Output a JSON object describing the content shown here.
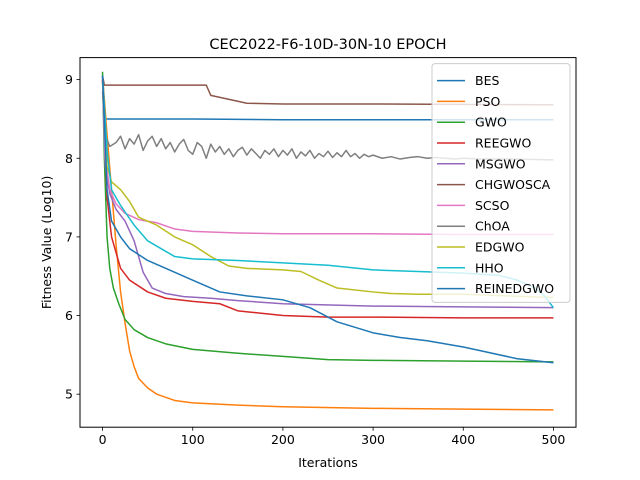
{
  "chart_data": {
    "type": "line",
    "title": "CEC2022-F6-10D-30N-10 EPOCH",
    "xlabel": "Iterations",
    "ylabel": "Fitness Value (Log10)",
    "xlim": [
      -25,
      525
    ],
    "ylim": [
      4.58,
      9.28
    ],
    "xticks": [
      0,
      100,
      200,
      300,
      400,
      500
    ],
    "yticks": [
      5,
      6,
      7,
      8,
      9
    ],
    "grid": false,
    "legend_position": "top-right",
    "series": [
      {
        "name": "BES",
        "color": "#1f77b4",
        "points": [
          [
            0,
            9.05
          ],
          [
            3,
            8.5
          ],
          [
            100,
            8.5
          ],
          [
            200,
            8.49
          ],
          [
            500,
            8.49
          ]
        ]
      },
      {
        "name": "PSO",
        "color": "#ff7f0e",
        "points": [
          [
            0,
            9.05
          ],
          [
            5,
            8.3
          ],
          [
            10,
            7.6
          ],
          [
            15,
            6.9
          ],
          [
            20,
            6.3
          ],
          [
            25,
            5.9
          ],
          [
            30,
            5.55
          ],
          [
            35,
            5.35
          ],
          [
            40,
            5.2
          ],
          [
            50,
            5.08
          ],
          [
            60,
            5.0
          ],
          [
            80,
            4.92
          ],
          [
            100,
            4.89
          ],
          [
            150,
            4.86
          ],
          [
            200,
            4.84
          ],
          [
            300,
            4.82
          ],
          [
            400,
            4.81
          ],
          [
            500,
            4.8
          ]
        ]
      },
      {
        "name": "GWO",
        "color": "#2ca02c",
        "points": [
          [
            0,
            9.1
          ],
          [
            2,
            8.0
          ],
          [
            5,
            7.0
          ],
          [
            8,
            6.6
          ],
          [
            12,
            6.35
          ],
          [
            18,
            6.15
          ],
          [
            25,
            5.95
          ],
          [
            35,
            5.82
          ],
          [
            50,
            5.72
          ],
          [
            70,
            5.64
          ],
          [
            100,
            5.57
          ],
          [
            150,
            5.52
          ],
          [
            200,
            5.48
          ],
          [
            250,
            5.44
          ],
          [
            300,
            5.43
          ],
          [
            400,
            5.42
          ],
          [
            500,
            5.41
          ]
        ]
      },
      {
        "name": "REEGWO",
        "color": "#d62728",
        "points": [
          [
            0,
            9.0
          ],
          [
            5,
            7.5
          ],
          [
            10,
            7.0
          ],
          [
            20,
            6.6
          ],
          [
            30,
            6.45
          ],
          [
            50,
            6.3
          ],
          [
            70,
            6.22
          ],
          [
            100,
            6.18
          ],
          [
            130,
            6.15
          ],
          [
            150,
            6.06
          ],
          [
            200,
            6.0
          ],
          [
            250,
            5.98
          ],
          [
            300,
            5.98
          ],
          [
            400,
            5.97
          ],
          [
            500,
            5.97
          ]
        ]
      },
      {
        "name": "MSGWO",
        "color": "#9467bd",
        "points": [
          [
            0,
            9.0
          ],
          [
            3,
            7.9
          ],
          [
            8,
            7.55
          ],
          [
            15,
            7.35
          ],
          [
            25,
            7.2
          ],
          [
            35,
            6.95
          ],
          [
            45,
            6.55
          ],
          [
            55,
            6.35
          ],
          [
            70,
            6.28
          ],
          [
            90,
            6.24
          ],
          [
            120,
            6.22
          ],
          [
            150,
            6.19
          ],
          [
            200,
            6.15
          ],
          [
            300,
            6.12
          ],
          [
            400,
            6.11
          ],
          [
            500,
            6.1
          ]
        ]
      },
      {
        "name": "CHGWOSCA",
        "color": "#8c564b",
        "points": [
          [
            0,
            9.05
          ],
          [
            2,
            8.93
          ],
          [
            50,
            8.93
          ],
          [
            115,
            8.93
          ],
          [
            120,
            8.8
          ],
          [
            160,
            8.7
          ],
          [
            200,
            8.69
          ],
          [
            300,
            8.69
          ],
          [
            500,
            8.68
          ]
        ]
      },
      {
        "name": "SCSO",
        "color": "#e377c2",
        "points": [
          [
            0,
            9.0
          ],
          [
            3,
            8.0
          ],
          [
            8,
            7.6
          ],
          [
            15,
            7.42
          ],
          [
            25,
            7.3
          ],
          [
            40,
            7.22
          ],
          [
            60,
            7.18
          ],
          [
            80,
            7.1
          ],
          [
            100,
            7.07
          ],
          [
            150,
            7.05
          ],
          [
            200,
            7.04
          ],
          [
            300,
            7.04
          ],
          [
            400,
            7.03
          ],
          [
            500,
            7.03
          ]
        ]
      },
      {
        "name": "ChOA",
        "color": "#7f7f7f",
        "points": [
          [
            0,
            8.85
          ],
          [
            3,
            8.3
          ],
          [
            8,
            8.15
          ],
          [
            15,
            8.2
          ],
          [
            20,
            8.28
          ],
          [
            25,
            8.12
          ],
          [
            30,
            8.25
          ],
          [
            35,
            8.18
          ],
          [
            40,
            8.3
          ],
          [
            45,
            8.1
          ],
          [
            50,
            8.22
          ],
          [
            55,
            8.28
          ],
          [
            60,
            8.15
          ],
          [
            65,
            8.25
          ],
          [
            70,
            8.12
          ],
          [
            75,
            8.2
          ],
          [
            80,
            8.08
          ],
          [
            85,
            8.18
          ],
          [
            90,
            8.24
          ],
          [
            95,
            8.1
          ],
          [
            100,
            8.05
          ],
          [
            105,
            8.2
          ],
          [
            110,
            8.15
          ],
          [
            115,
            8.0
          ],
          [
            120,
            8.18
          ],
          [
            125,
            8.08
          ],
          [
            130,
            8.15
          ],
          [
            135,
            8.05
          ],
          [
            140,
            8.12
          ],
          [
            145,
            8.02
          ],
          [
            150,
            8.1
          ],
          [
            155,
            8.14
          ],
          [
            160,
            8.04
          ],
          [
            165,
            8.12
          ],
          [
            170,
            8.06
          ],
          [
            175,
            8.0
          ],
          [
            180,
            8.1
          ],
          [
            185,
            8.05
          ],
          [
            190,
            8.12
          ],
          [
            195,
            8.02
          ],
          [
            200,
            8.1
          ],
          [
            205,
            8.04
          ],
          [
            210,
            8.12
          ],
          [
            215,
            8.0
          ],
          [
            220,
            8.08
          ],
          [
            225,
            8.03
          ],
          [
            230,
            8.1
          ],
          [
            235,
            8.0
          ],
          [
            240,
            8.06
          ],
          [
            245,
            8.02
          ],
          [
            250,
            8.09
          ],
          [
            255,
            8.01
          ],
          [
            260,
            8.07
          ],
          [
            265,
            8.02
          ],
          [
            270,
            8.1
          ],
          [
            275,
            8.02
          ],
          [
            280,
            8.06
          ],
          [
            285,
            8.0
          ],
          [
            290,
            8.05
          ],
          [
            295,
            8.02
          ],
          [
            300,
            8.04
          ],
          [
            310,
            8.0
          ],
          [
            320,
            8.02
          ],
          [
            330,
            7.99
          ],
          [
            340,
            8.01
          ],
          [
            350,
            8.02
          ],
          [
            360,
            8.0
          ],
          [
            370,
            8.01
          ],
          [
            380,
            8.0
          ],
          [
            390,
            7.99
          ],
          [
            400,
            8.0
          ],
          [
            420,
            7.99
          ],
          [
            450,
            7.99
          ],
          [
            500,
            7.98
          ]
        ]
      },
      {
        "name": "EDGWO",
        "color": "#bcbd22",
        "points": [
          [
            0,
            9.0
          ],
          [
            5,
            7.9
          ],
          [
            10,
            7.7
          ],
          [
            20,
            7.6
          ],
          [
            30,
            7.45
          ],
          [
            40,
            7.25
          ],
          [
            50,
            7.2
          ],
          [
            60,
            7.15
          ],
          [
            80,
            7.0
          ],
          [
            100,
            6.9
          ],
          [
            120,
            6.75
          ],
          [
            140,
            6.63
          ],
          [
            160,
            6.6
          ],
          [
            200,
            6.58
          ],
          [
            220,
            6.56
          ],
          [
            240,
            6.45
          ],
          [
            260,
            6.35
          ],
          [
            300,
            6.3
          ],
          [
            320,
            6.28
          ],
          [
            350,
            6.27
          ],
          [
            400,
            6.27
          ],
          [
            450,
            6.25
          ],
          [
            470,
            6.24
          ],
          [
            500,
            6.23
          ]
        ]
      },
      {
        "name": "HHO",
        "color": "#17becf",
        "points": [
          [
            0,
            9.05
          ],
          [
            5,
            8.1
          ],
          [
            10,
            7.6
          ],
          [
            20,
            7.4
          ],
          [
            35,
            7.15
          ],
          [
            50,
            6.95
          ],
          [
            65,
            6.85
          ],
          [
            80,
            6.75
          ],
          [
            100,
            6.72
          ],
          [
            150,
            6.7
          ],
          [
            200,
            6.67
          ],
          [
            250,
            6.64
          ],
          [
            300,
            6.58
          ],
          [
            350,
            6.56
          ],
          [
            400,
            6.54
          ],
          [
            440,
            6.51
          ],
          [
            460,
            6.45
          ],
          [
            480,
            6.35
          ],
          [
            490,
            6.25
          ],
          [
            500,
            6.1
          ]
        ]
      },
      {
        "name": "REINEDGWO",
        "color": "#1f77b4",
        "points": [
          [
            0,
            9.05
          ],
          [
            5,
            7.6
          ],
          [
            10,
            7.2
          ],
          [
            20,
            7.0
          ],
          [
            30,
            6.85
          ],
          [
            50,
            6.7
          ],
          [
            70,
            6.6
          ],
          [
            100,
            6.45
          ],
          [
            130,
            6.3
          ],
          [
            160,
            6.25
          ],
          [
            200,
            6.2
          ],
          [
            230,
            6.1
          ],
          [
            260,
            5.92
          ],
          [
            280,
            5.85
          ],
          [
            300,
            5.78
          ],
          [
            330,
            5.72
          ],
          [
            360,
            5.68
          ],
          [
            400,
            5.6
          ],
          [
            420,
            5.55
          ],
          [
            460,
            5.45
          ],
          [
            500,
            5.4
          ]
        ]
      }
    ]
  }
}
